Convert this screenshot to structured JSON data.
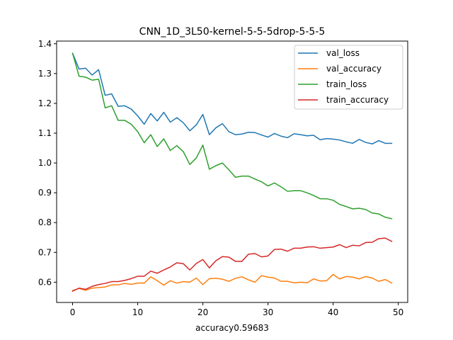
{
  "chart_data": {
    "type": "line",
    "title": "CNN_1D_3L50-kernel-5-5-5drop-5-5-5",
    "xlabel": "accuracy0.59683",
    "ylabel": "",
    "xlim": [
      -2.45,
      51.45
    ],
    "ylim": [
      0.532,
      1.409
    ],
    "xticks": [
      0,
      10,
      20,
      30,
      40,
      50
    ],
    "yticks": [
      0.6,
      0.7,
      0.8,
      0.9,
      1.0,
      1.1,
      1.2,
      1.3,
      1.4
    ],
    "ytick_labels": [
      "0.6",
      "0.7",
      "0.8",
      "0.9",
      "1.0",
      "1.1",
      "1.2",
      "1.3",
      "1.4"
    ],
    "grid": false,
    "legend_position": "top-right",
    "x": [
      0,
      1,
      2,
      3,
      4,
      5,
      6,
      7,
      8,
      9,
      10,
      11,
      12,
      13,
      14,
      15,
      16,
      17,
      18,
      19,
      20,
      21,
      22,
      23,
      24,
      25,
      26,
      27,
      28,
      29,
      30,
      31,
      32,
      33,
      34,
      35,
      36,
      37,
      38,
      39,
      40,
      41,
      42,
      43,
      44,
      45,
      46,
      47,
      48,
      49
    ],
    "series": [
      {
        "name": "val_loss",
        "color": "#1f77b4",
        "values": [
          1.368,
          1.315,
          1.318,
          1.295,
          1.313,
          1.227,
          1.232,
          1.19,
          1.192,
          1.181,
          1.158,
          1.13,
          1.166,
          1.141,
          1.17,
          1.137,
          1.152,
          1.135,
          1.108,
          1.128,
          1.163,
          1.095,
          1.118,
          1.132,
          1.105,
          1.095,
          1.097,
          1.103,
          1.102,
          1.094,
          1.087,
          1.099,
          1.09,
          1.085,
          1.098,
          1.095,
          1.091,
          1.093,
          1.078,
          1.082,
          1.08,
          1.077,
          1.071,
          1.066,
          1.079,
          1.069,
          1.064,
          1.075,
          1.066,
          1.066
        ]
      },
      {
        "name": "val_accuracy",
        "color": "#ff7f0e",
        "values": [
          0.572,
          0.579,
          0.573,
          0.58,
          0.582,
          0.584,
          0.591,
          0.591,
          0.596,
          0.593,
          0.597,
          0.597,
          0.618,
          0.605,
          0.59,
          0.605,
          0.597,
          0.602,
          0.6,
          0.614,
          0.592,
          0.612,
          0.613,
          0.61,
          0.603,
          0.613,
          0.618,
          0.608,
          0.6,
          0.622,
          0.617,
          0.614,
          0.603,
          0.603,
          0.598,
          0.6,
          0.598,
          0.611,
          0.604,
          0.605,
          0.626,
          0.611,
          0.619,
          0.617,
          0.611,
          0.619,
          0.614,
          0.603,
          0.609,
          0.597
        ]
      },
      {
        "name": "train_loss",
        "color": "#2ca02c",
        "values": [
          1.368,
          1.291,
          1.288,
          1.278,
          1.281,
          1.185,
          1.192,
          1.143,
          1.143,
          1.13,
          1.105,
          1.068,
          1.095,
          1.055,
          1.081,
          1.042,
          1.058,
          1.038,
          0.995,
          1.017,
          1.06,
          0.979,
          0.991,
          1.0,
          0.977,
          0.952,
          0.956,
          0.956,
          0.946,
          0.937,
          0.923,
          0.933,
          0.92,
          0.905,
          0.907,
          0.907,
          0.9,
          0.891,
          0.88,
          0.88,
          0.875,
          0.861,
          0.854,
          0.846,
          0.848,
          0.844,
          0.832,
          0.829,
          0.818,
          0.813
        ]
      },
      {
        "name": "train_accuracy",
        "color": "#d62728",
        "values": [
          0.57,
          0.58,
          0.576,
          0.586,
          0.592,
          0.596,
          0.602,
          0.602,
          0.606,
          0.612,
          0.62,
          0.62,
          0.637,
          0.63,
          0.641,
          0.651,
          0.665,
          0.662,
          0.641,
          0.663,
          0.676,
          0.648,
          0.672,
          0.686,
          0.684,
          0.67,
          0.67,
          0.694,
          0.696,
          0.685,
          0.688,
          0.71,
          0.711,
          0.704,
          0.714,
          0.714,
          0.718,
          0.719,
          0.714,
          0.716,
          0.718,
          0.726,
          0.716,
          0.724,
          0.722,
          0.733,
          0.734,
          0.746,
          0.748,
          0.737
        ]
      }
    ]
  }
}
